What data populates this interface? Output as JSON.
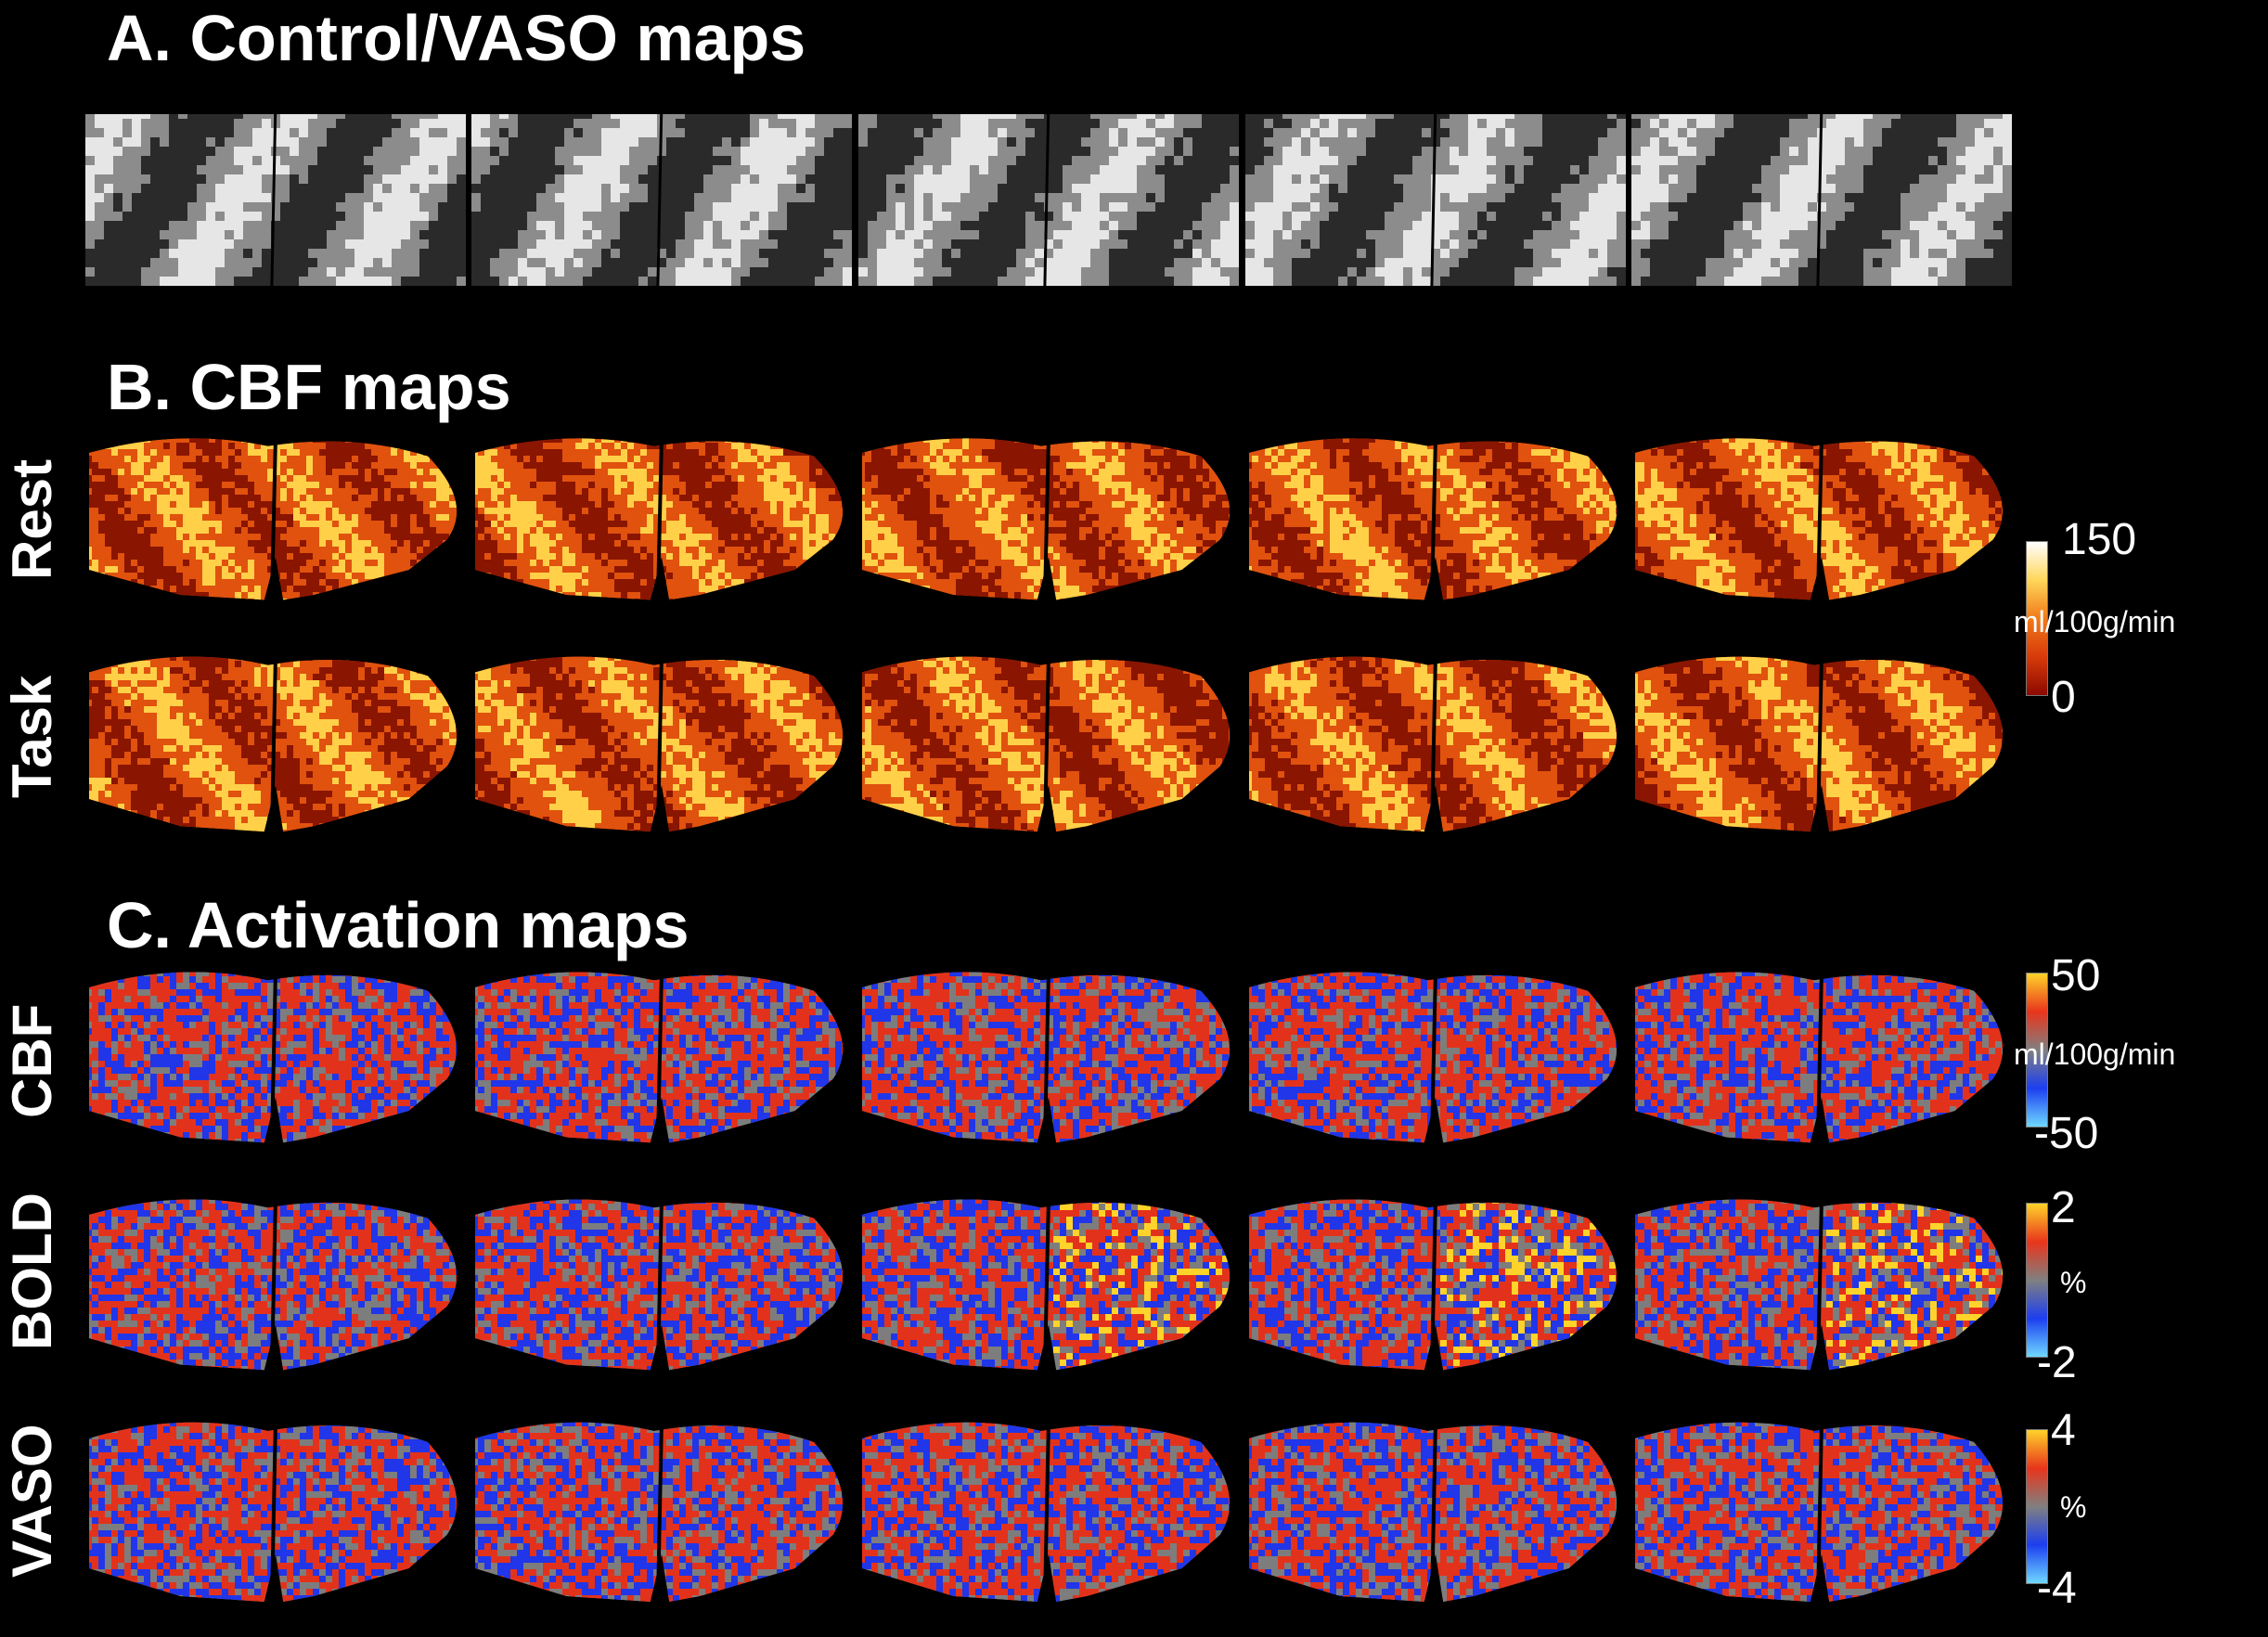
{
  "sections": {
    "a_title": "A. Control/VASO maps",
    "b_title": "B. CBF maps",
    "c_title": "C. Activation maps"
  },
  "row_labels": {
    "rest": "Rest",
    "task": "Task",
    "cbf": "CBF",
    "bold": "BOLD",
    "vaso": "VASO"
  },
  "colorbars": {
    "cbf_map": {
      "max": "150",
      "min": "0",
      "unit": "ml/100g/min",
      "colors": [
        "#8b0a00",
        "#d83a0a",
        "#f07a1a",
        "#ffd65a",
        "#ffffff"
      ]
    },
    "cbf_activation": {
      "max": "50",
      "min": "-50",
      "unit": "ml/100g/min",
      "colors": [
        "#6fd8ff",
        "#1d3ef0",
        "#808080",
        "#e8351c",
        "#ffd32a"
      ]
    },
    "bold_activation": {
      "max": "2",
      "min": "-2",
      "unit": "%",
      "colors": [
        "#6fd8ff",
        "#1d3ef0",
        "#808080",
        "#e8351c",
        "#ffd32a"
      ]
    },
    "vaso_activation": {
      "max": "4",
      "min": "-4",
      "unit": "%",
      "colors": [
        "#6fd8ff",
        "#1d3ef0",
        "#808080",
        "#e8351c",
        "#ffd32a"
      ]
    }
  },
  "map_colors": {
    "control": {
      "dark": "#2a2a2a",
      "mid": "#8c8c8c",
      "light": "#e6e6e6"
    },
    "cbf": {
      "dark": "#8a1500",
      "mid": "#e0520e",
      "light": "#ffd048"
    },
    "activation": {
      "neg": "#2036e8",
      "zero": "#7d7d7d",
      "pos": "#e3321b",
      "hot": "#ffd32a"
    }
  }
}
